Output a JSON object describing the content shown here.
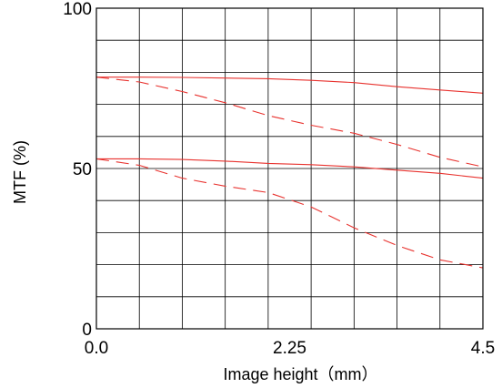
{
  "chart_data": {
    "type": "line",
    "title": "",
    "xlabel": "Image height（mm）",
    "ylabel": "MTF (%)",
    "xlim": [
      0,
      4.5
    ],
    "ylim": [
      0,
      100
    ],
    "x_ticks": [
      {
        "value": 0,
        "label": "0.0"
      },
      {
        "value": 2.25,
        "label": "2.25"
      },
      {
        "value": 4.5,
        "label": "4.5"
      }
    ],
    "y_ticks": [
      {
        "value": 0,
        "label": "0"
      },
      {
        "value": 50,
        "label": "50"
      },
      {
        "value": 100,
        "label": "100"
      }
    ],
    "grid": true,
    "grid_columns": 9,
    "grid_rows": 10,
    "series": [
      {
        "line_style": "solid",
        "color": "#e8322e",
        "points": [
          [
            0,
            78.5
          ],
          [
            0.5,
            78.5
          ],
          [
            1.0,
            78.4
          ],
          [
            1.5,
            78.2
          ],
          [
            2.0,
            78.0
          ],
          [
            2.5,
            77.5
          ],
          [
            3.0,
            76.8
          ],
          [
            3.5,
            75.5
          ],
          [
            4.0,
            74.5
          ],
          [
            4.5,
            73.5
          ]
        ]
      },
      {
        "line_style": "dashed",
        "color": "#e8322e",
        "points": [
          [
            0,
            78.5
          ],
          [
            0.5,
            77.0
          ],
          [
            1.0,
            74.0
          ],
          [
            1.5,
            70.5
          ],
          [
            2.0,
            66.5
          ],
          [
            2.5,
            63.5
          ],
          [
            3.0,
            61.0
          ],
          [
            3.5,
            57.5
          ],
          [
            4.0,
            53.5
          ],
          [
            4.5,
            50.5
          ]
        ]
      },
      {
        "line_style": "solid",
        "color": "#e8322e",
        "points": [
          [
            0,
            53.0
          ],
          [
            0.5,
            53.0
          ],
          [
            1.0,
            52.8
          ],
          [
            1.5,
            52.3
          ],
          [
            2.0,
            51.6
          ],
          [
            2.5,
            51.2
          ],
          [
            3.0,
            50.5
          ],
          [
            3.5,
            49.5
          ],
          [
            4.0,
            48.5
          ],
          [
            4.5,
            47.0
          ]
        ]
      },
      {
        "line_style": "dashed",
        "color": "#e8322e",
        "points": [
          [
            0,
            53.0
          ],
          [
            0.5,
            51.0
          ],
          [
            1.0,
            47.0
          ],
          [
            1.5,
            44.5
          ],
          [
            2.0,
            42.5
          ],
          [
            2.5,
            38.0
          ],
          [
            3.0,
            31.5
          ],
          [
            3.5,
            26.0
          ],
          [
            4.0,
            21.5
          ],
          [
            4.5,
            19.0
          ]
        ]
      }
    ]
  }
}
